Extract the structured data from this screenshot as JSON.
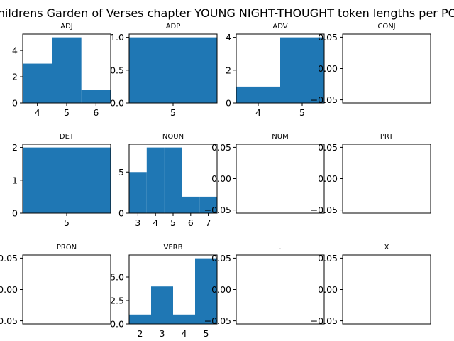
{
  "figure": {
    "title": "Childrens Garden of Verses chapter YOUNG NIGHT-THOUGHT token lengths per POS"
  },
  "colors": {
    "bar": "#1f77b4",
    "axis": "#000000",
    "background": "#ffffff"
  },
  "chart_data": [
    {
      "type": "bar",
      "title": "ADJ",
      "categories": [
        4,
        5,
        6
      ],
      "values": [
        3,
        5,
        1
      ],
      "xticks": [
        "4",
        "5",
        "6"
      ],
      "yticks": [
        "0",
        "2",
        "4"
      ],
      "xlim": [
        3.5,
        6.5
      ],
      "ylim": [
        0,
        5.25
      ]
    },
    {
      "type": "bar",
      "title": "ADP",
      "categories": [
        5
      ],
      "values": [
        1
      ],
      "xticks": [
        "5"
      ],
      "yticks": [
        "0.0",
        "0.5",
        "1.0"
      ],
      "xlim": [
        4.5,
        5.5
      ],
      "ylim": [
        0,
        1.05
      ]
    },
    {
      "type": "bar",
      "title": "ADV",
      "categories": [
        4,
        5
      ],
      "values": [
        1,
        4
      ],
      "xticks": [
        "4",
        "5"
      ],
      "yticks": [
        "0",
        "2",
        "4"
      ],
      "xlim": [
        3.5,
        5.5
      ],
      "ylim": [
        0,
        4.2
      ]
    },
    {
      "type": "bar",
      "title": "CONJ",
      "categories": [],
      "values": [],
      "xticks": [],
      "yticks": [
        "−0.05",
        "0.00",
        "0.05"
      ],
      "xlim": [
        0,
        1
      ],
      "ylim": [
        -0.055,
        0.055
      ]
    },
    {
      "type": "bar",
      "title": "DET",
      "categories": [
        5
      ],
      "values": [
        2
      ],
      "xticks": [
        "5"
      ],
      "yticks": [
        "0",
        "1",
        "2"
      ],
      "xlim": [
        4.5,
        5.5
      ],
      "ylim": [
        0,
        2.1
      ]
    },
    {
      "type": "bar",
      "title": "NOUN",
      "categories": [
        3,
        4,
        5,
        6,
        7
      ],
      "values": [
        5,
        8,
        8,
        2,
        2
      ],
      "xticks": [
        "3",
        "4",
        "5",
        "6",
        "7"
      ],
      "yticks": [
        "0",
        "5"
      ],
      "xlim": [
        2.5,
        7.5
      ],
      "ylim": [
        0,
        8.4
      ]
    },
    {
      "type": "bar",
      "title": "NUM",
      "categories": [],
      "values": [],
      "xticks": [],
      "yticks": [
        "−0.05",
        "0.00",
        "0.05"
      ],
      "xlim": [
        0,
        1
      ],
      "ylim": [
        -0.055,
        0.055
      ]
    },
    {
      "type": "bar",
      "title": "PRT",
      "categories": [],
      "values": [],
      "xticks": [],
      "yticks": [
        "−0.05",
        "0.00",
        "0.05"
      ],
      "xlim": [
        0,
        1
      ],
      "ylim": [
        -0.055,
        0.055
      ]
    },
    {
      "type": "bar",
      "title": "PRON",
      "categories": [],
      "values": [],
      "xticks": [],
      "yticks": [
        "−0.05",
        "0.00",
        "0.05"
      ],
      "xlim": [
        0,
        1
      ],
      "ylim": [
        -0.055,
        0.055
      ]
    },
    {
      "type": "bar",
      "title": "VERB",
      "categories": [
        2,
        3,
        4,
        5
      ],
      "values": [
        1,
        4,
        1,
        7
      ],
      "xticks": [
        "2",
        "3",
        "4",
        "5"
      ],
      "yticks": [
        "0.0",
        "2.5",
        "5.0"
      ],
      "xlim": [
        1.5,
        5.5
      ],
      "ylim": [
        0,
        7.35
      ]
    },
    {
      "type": "bar",
      "title": ".",
      "categories": [],
      "values": [],
      "xticks": [],
      "yticks": [
        "−0.05",
        "0.00",
        "0.05"
      ],
      "xlim": [
        0,
        1
      ],
      "ylim": [
        -0.055,
        0.055
      ]
    },
    {
      "type": "bar",
      "title": "X",
      "categories": [],
      "values": [],
      "xticks": [],
      "yticks": [
        "−0.05",
        "0.00",
        "0.05"
      ],
      "xlim": [
        0,
        1
      ],
      "ylim": [
        -0.055,
        0.055
      ]
    }
  ]
}
